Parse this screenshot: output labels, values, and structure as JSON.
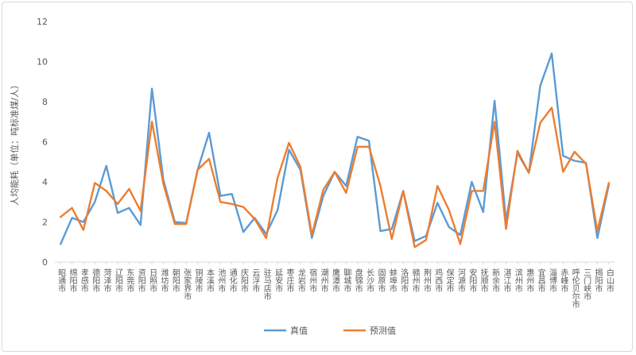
{
  "chart_data": {
    "type": "line",
    "ylabel": "人均能耗（单位：吨标准煤/人）",
    "ylim": [
      0,
      12
    ],
    "yticks": [
      0,
      2,
      4,
      6,
      8,
      10,
      12
    ],
    "grid": false,
    "legend_position": "bottom",
    "categories": [
      "昭通市",
      "绵阳市",
      "孝感市",
      "德阳市",
      "菏泽市",
      "辽阳市",
      "东莞市",
      "资阳市",
      "日照市",
      "潍坊市",
      "朝阳市",
      "张家界市",
      "铜陵市",
      "本溪市",
      "池州市",
      "通化市",
      "庆阳市",
      "云浮市",
      "驻马店市",
      "延安市",
      "枣庄市",
      "龙岩市",
      "宿州市",
      "潮州市",
      "鹰潭市",
      "聊城市",
      "盘锦市",
      "长沙市",
      "固原市",
      "蚌埠市",
      "洛阳市",
      "赣州市",
      "荆州市",
      "鸡西市",
      "保定市",
      "河源市",
      "安阳市",
      "抚顺市",
      "新余市",
      "湛江市",
      "滨州市",
      "惠州市",
      "宜昌市",
      "淄博市",
      "赤峰市",
      "呼伦贝尔市",
      "三门峡市",
      "揭阳市",
      "白山市"
    ],
    "series": [
      {
        "name": "真值",
        "color": "#5b9bd5",
        "values": [
          0.9,
          2.2,
          2.0,
          3.0,
          4.8,
          2.45,
          2.7,
          1.85,
          8.65,
          4.1,
          2.0,
          1.95,
          4.6,
          6.45,
          3.3,
          3.4,
          1.5,
          2.2,
          1.4,
          2.6,
          5.6,
          4.6,
          1.2,
          3.3,
          4.5,
          3.8,
          6.25,
          6.05,
          1.55,
          1.65,
          3.55,
          1.05,
          1.3,
          2.95,
          1.75,
          1.35,
          4.0,
          2.5,
          8.05,
          2.05,
          5.45,
          4.45,
          8.8,
          10.4,
          5.3,
          5.05,
          4.95,
          1.2,
          3.85
        ]
      },
      {
        "name": "预测值",
        "color": "#ed7d31",
        "values": [
          2.25,
          2.7,
          1.6,
          3.95,
          3.55,
          2.9,
          3.65,
          2.55,
          7.0,
          3.9,
          1.9,
          1.9,
          4.6,
          5.15,
          3.0,
          2.9,
          2.75,
          2.15,
          1.2,
          4.2,
          5.95,
          4.75,
          1.35,
          3.6,
          4.5,
          3.45,
          5.75,
          5.75,
          3.8,
          1.15,
          3.55,
          0.75,
          1.1,
          3.8,
          2.6,
          0.9,
          3.55,
          3.55,
          7.0,
          1.65,
          5.55,
          4.45,
          6.95,
          7.7,
          4.5,
          5.5,
          4.9,
          1.55,
          3.95
        ]
      }
    ]
  }
}
